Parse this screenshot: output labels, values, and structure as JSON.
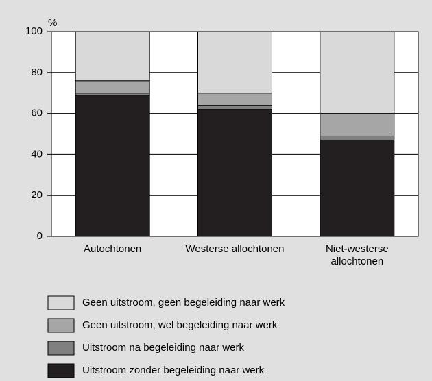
{
  "chart_data": {
    "type": "stacked_bar",
    "y_label": "%",
    "categories": [
      "Autochtonen",
      "Westerse allochtonen",
      "Niet-westerse\nallochtonen"
    ],
    "series": [
      {
        "name": "Uitstroom zonder begeleiding naar werk",
        "color": "#231f20",
        "values": [
          69,
          62,
          47
        ]
      },
      {
        "name": "Uitstroom na begeleiding naar werk",
        "color": "#808080",
        "values": [
          1,
          2,
          2
        ]
      },
      {
        "name": "Geen uitstroom, wel begeleiding naar werk",
        "color": "#a6a6a6",
        "values": [
          6,
          6,
          11
        ]
      },
      {
        "name": "Geen uitstroom, geen begeleiding naar werk",
        "color": "#d9d9d9",
        "values": [
          24,
          30,
          40
        ]
      }
    ],
    "ylim": [
      0,
      100
    ],
    "yticks": [
      0,
      20,
      40,
      60,
      80,
      100
    ],
    "grid": true
  }
}
